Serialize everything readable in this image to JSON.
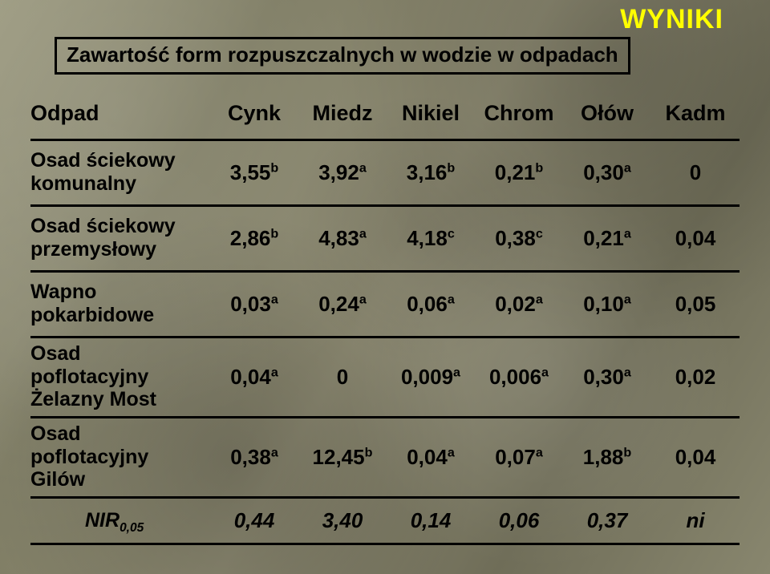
{
  "badge": "WYNIKI",
  "title": "Zawartość form rozpuszczalnych w wodzie w odpadach",
  "columns": [
    "Odpad",
    "Cynk",
    "Miedz",
    "Nikiel",
    "Chrom",
    "Ołów",
    "Kadm"
  ],
  "rows": [
    {
      "label_lines": [
        "Osad ściekowy",
        "komunalny"
      ],
      "values": [
        {
          "num": "3,55",
          "sup": "b"
        },
        {
          "num": "3,92",
          "sup": "a"
        },
        {
          "num": "3,16",
          "sup": "b"
        },
        {
          "num": "0,21",
          "sup": "b"
        },
        {
          "num": "0,30",
          "sup": "a"
        },
        {
          "num": "0",
          "sup": ""
        }
      ]
    },
    {
      "label_lines": [
        "Osad ściekowy",
        "przemysłowy"
      ],
      "values": [
        {
          "num": "2,86",
          "sup": "b"
        },
        {
          "num": "4,83",
          "sup": "a"
        },
        {
          "num": "4,18",
          "sup": "c"
        },
        {
          "num": "0,38",
          "sup": "c"
        },
        {
          "num": "0,21",
          "sup": "a"
        },
        {
          "num": "0,04",
          "sup": ""
        }
      ]
    },
    {
      "label_lines": [
        "Wapno",
        "pokarbidowe"
      ],
      "values": [
        {
          "num": "0,03",
          "sup": "a"
        },
        {
          "num": "0,24",
          "sup": "a"
        },
        {
          "num": "0,06",
          "sup": "a"
        },
        {
          "num": "0,02",
          "sup": "a"
        },
        {
          "num": "0,10",
          "sup": "a"
        },
        {
          "num": "0,05",
          "sup": ""
        }
      ]
    },
    {
      "label_lines": [
        "Osad",
        "poflotacyjny",
        "Żelazny Most"
      ],
      "values": [
        {
          "num": "0,04",
          "sup": "a"
        },
        {
          "num": "0",
          "sup": ""
        },
        {
          "num": "0,009",
          "sup": "a"
        },
        {
          "num": "0,006",
          "sup": "a"
        },
        {
          "num": "0,30",
          "sup": "a"
        },
        {
          "num": "0,02",
          "sup": ""
        }
      ]
    },
    {
      "label_lines": [
        "Osad",
        "poflotacyjny",
        "Gilów"
      ],
      "values": [
        {
          "num": "0,38",
          "sup": "a"
        },
        {
          "num": "12,45",
          "sup": "b"
        },
        {
          "num": "0,04",
          "sup": "a"
        },
        {
          "num": "0,07",
          "sup": "a"
        },
        {
          "num": "1,88",
          "sup": "b"
        },
        {
          "num": "0,04",
          "sup": ""
        }
      ]
    }
  ],
  "footer": {
    "label_main": "NIR",
    "label_sub": "0,05",
    "values": [
      "0,44",
      "3,40",
      "0,14",
      "0,06",
      "0,37",
      "ni"
    ]
  },
  "style": {
    "badge_color": "#ffff00",
    "text_color": "#000000",
    "border_color": "#000000",
    "title_fontsize": 26,
    "header_fontsize": 27,
    "cell_fontsize": 26,
    "background_base": "#8a8a72"
  }
}
